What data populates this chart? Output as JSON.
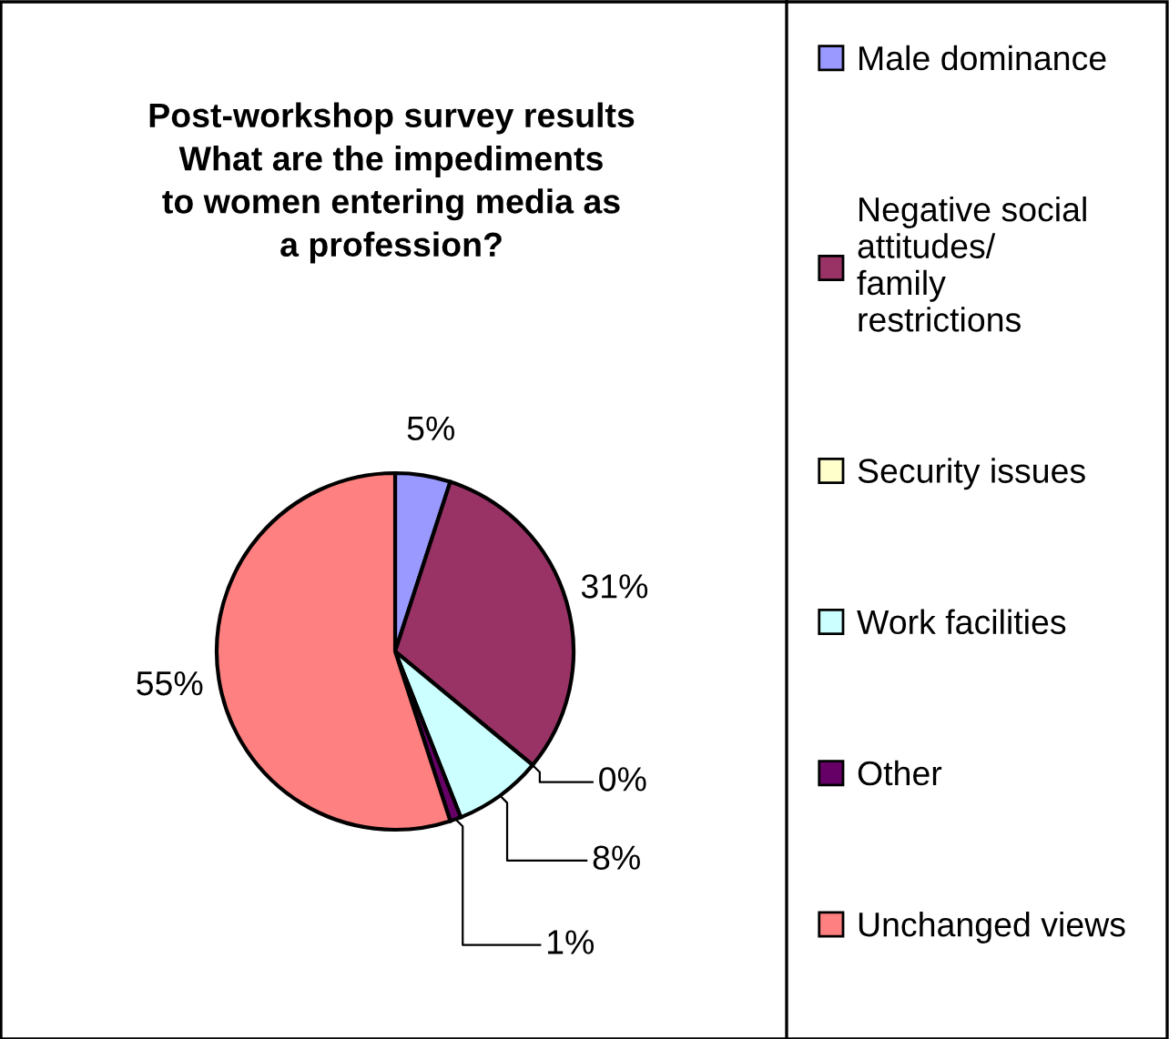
{
  "chart_data": {
    "type": "pie",
    "title": "Post-workshop survey results",
    "subtitle": "What are the impediments to women entering media as a profession?",
    "categories": [
      "Male dominance",
      "Negative social attitudes/ family restrictions",
      "Security issues",
      "Work facilities",
      "Other",
      "Unchanged views"
    ],
    "values": [
      5,
      31,
      0,
      8,
      1,
      55
    ],
    "colors": [
      "#9999ff",
      "#993366",
      "#ffffcc",
      "#ccffff",
      "#660066",
      "#ff8080"
    ],
    "value_labels": [
      "5%",
      "31%",
      "0%",
      "8%",
      "1%",
      "55%"
    ],
    "legend": "right"
  }
}
